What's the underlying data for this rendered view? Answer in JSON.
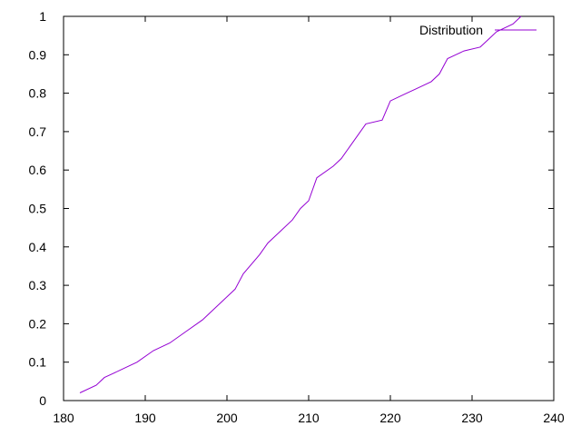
{
  "chart_data": {
    "type": "line",
    "title": "",
    "xlabel": "",
    "ylabel": "",
    "xlim": [
      180,
      240
    ],
    "ylim": [
      0,
      1
    ],
    "x_ticks": [
      "180",
      "190",
      "200",
      "210",
      "220",
      "230",
      "240"
    ],
    "y_ticks": [
      "0",
      "0.1",
      "0.2",
      "0.3",
      "0.4",
      "0.5",
      "0.6",
      "0.7",
      "0.8",
      "0.9",
      "1"
    ],
    "grid": false,
    "legend_position": "top-right",
    "series": [
      {
        "name": "Distribution",
        "color": "#9400d3",
        "x": [
          182,
          184,
          185,
          186,
          187,
          189,
          191,
          192,
          193,
          195,
          197,
          198,
          201,
          202,
          204,
          205,
          208,
          209,
          210,
          211,
          213,
          214,
          215,
          217,
          219,
          220,
          222,
          223,
          225,
          226,
          227,
          228,
          229,
          231,
          232,
          233,
          235,
          236
        ],
        "y": [
          0.02,
          0.04,
          0.06,
          0.07,
          0.08,
          0.1,
          0.13,
          0.14,
          0.15,
          0.18,
          0.21,
          0.23,
          0.29,
          0.33,
          0.38,
          0.41,
          0.47,
          0.5,
          0.52,
          0.58,
          0.61,
          0.63,
          0.66,
          0.72,
          0.73,
          0.78,
          0.8,
          0.81,
          0.83,
          0.85,
          0.89,
          0.9,
          0.91,
          0.92,
          0.94,
          0.96,
          0.98,
          1.0
        ]
      }
    ]
  }
}
